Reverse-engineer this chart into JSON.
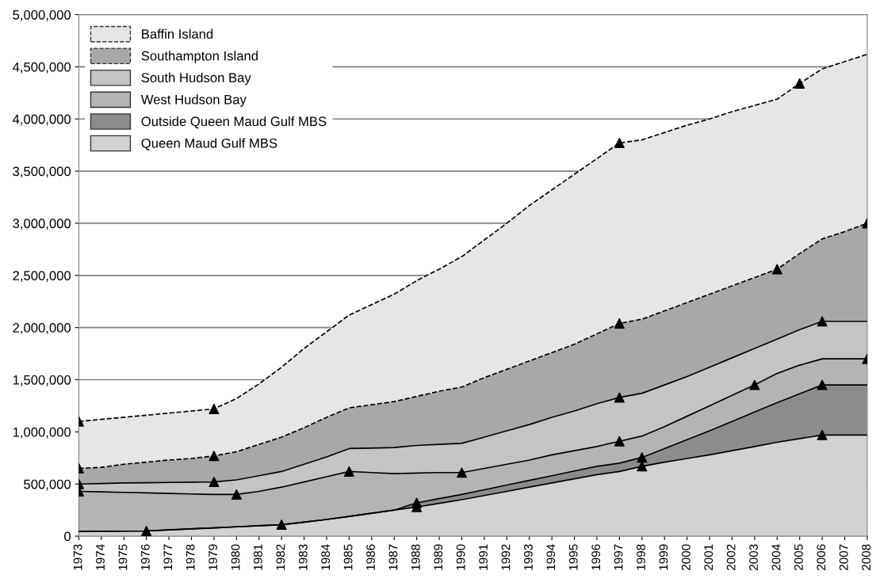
{
  "chart_data": {
    "type": "area",
    "stacked": true,
    "x": [
      1973,
      1974,
      1975,
      1976,
      1977,
      1978,
      1979,
      1980,
      1981,
      1982,
      1983,
      1984,
      1985,
      1986,
      1987,
      1988,
      1989,
      1990,
      1991,
      1992,
      1993,
      1994,
      1995,
      1996,
      1997,
      1998,
      1999,
      2000,
      2001,
      2002,
      2003,
      2004,
      2005,
      2006,
      2007,
      2008
    ],
    "xlim": [
      1973,
      2008
    ],
    "xticks": [
      1973,
      1974,
      1975,
      1976,
      1977,
      1978,
      1979,
      1980,
      1981,
      1982,
      1983,
      1984,
      1985,
      1986,
      1987,
      1988,
      1989,
      1990,
      1991,
      1992,
      1993,
      1994,
      1995,
      1996,
      1997,
      1998,
      1999,
      2000,
      2001,
      2002,
      2003,
      2004,
      2005,
      2006,
      2007,
      2008
    ],
    "ylim": [
      0,
      5000000
    ],
    "yticks": [
      {
        "value": 0,
        "label": "0"
      },
      {
        "value": 500000,
        "label": "500,000"
      },
      {
        "value": 1000000,
        "label": "1,000,000"
      },
      {
        "value": 1500000,
        "label": "1,500,000"
      },
      {
        "value": 2000000,
        "label": "2,000,000"
      },
      {
        "value": 2500000,
        "label": "2,500,000"
      },
      {
        "value": 3000000,
        "label": "3,000,000"
      },
      {
        "value": 3500000,
        "label": "3,500,000"
      },
      {
        "value": 4000000,
        "label": "4,000,000"
      },
      {
        "value": 4500000,
        "label": "4,500,000"
      },
      {
        "value": 5000000,
        "label": "5,000,000"
      }
    ],
    "grid": "y",
    "legend": "top left",
    "series": [
      {
        "name": "Queen Maud Gulf MBS",
        "color": "#d2d2d2",
        "values": [
          45000,
          47000,
          48000,
          50000,
          60000,
          70000,
          80000,
          90000,
          100000,
          110000,
          135000,
          160000,
          190000,
          220000,
          250000,
          280000,
          315000,
          350000,
          390000,
          430000,
          470000,
          510000,
          550000,
          590000,
          620000,
          670000,
          710000,
          745000,
          780000,
          820000,
          860000,
          900000,
          935000,
          970000,
          970000,
          970000
        ]
      },
      {
        "name": "Outside Queen Maud Gulf MBS",
        "color": "#8c8c8c",
        "values": [
          0,
          0,
          0,
          0,
          0,
          0,
          0,
          0,
          0,
          0,
          0,
          0,
          0,
          0,
          0,
          40000,
          45000,
          50000,
          55000,
          60000,
          65000,
          70000,
          75000,
          80000,
          80000,
          85000,
          130000,
          180000,
          230000,
          280000,
          330000,
          380000,
          430000,
          480000,
          480000,
          480000
        ]
      },
      {
        "name": "West Hudson Bay",
        "color": "#b4b4b4",
        "values": [
          385000,
          378000,
          372000,
          365000,
          350000,
          335000,
          320000,
          310000,
          330000,
          360000,
          385000,
          410000,
          430000,
          390000,
          350000,
          285000,
          250000,
          210000,
          205000,
          200000,
          195000,
          200000,
          195000,
          190000,
          210000,
          205000,
          210000,
          225000,
          240000,
          250000,
          260000,
          280000,
          275000,
          250000,
          250000,
          250000
        ]
      },
      {
        "name": "South Hudson Bay",
        "color": "#c4c4c4",
        "values": [
          70000,
          80000,
          90000,
          97000,
          105000,
          113000,
          120000,
          140000,
          150000,
          150000,
          170000,
          190000,
          220000,
          235000,
          250000,
          265000,
          270000,
          280000,
          300000,
          320000,
          340000,
          360000,
          380000,
          410000,
          420000,
          410000,
          400000,
          380000,
          370000,
          360000,
          350000,
          330000,
          340000,
          360000,
          360000,
          360000
        ]
      },
      {
        "name": "Southampton Island",
        "color": "#a8a8a8",
        "line_style": "dashed",
        "values": [
          150000,
          155000,
          180000,
          198000,
          215000,
          227000,
          250000,
          270000,
          300000,
          330000,
          350000,
          380000,
          390000,
          415000,
          440000,
          470000,
          510000,
          540000,
          570000,
          590000,
          610000,
          620000,
          640000,
          670000,
          710000,
          710000,
          710000,
          710000,
          700000,
          690000,
          680000,
          670000,
          730000,
          790000,
          860000,
          940000
        ]
      },
      {
        "name": "Baffin Island",
        "color": "#e6e6e6",
        "line_style": "dashed",
        "values": [
          450000,
          460000,
          450000,
          450000,
          450000,
          455000,
          450000,
          510000,
          580000,
          670000,
          760000,
          820000,
          890000,
          960000,
          1030000,
          1110000,
          1170000,
          1250000,
          1320000,
          1400000,
          1490000,
          1560000,
          1630000,
          1680000,
          1730000,
          1720000,
          1710000,
          1700000,
          1680000,
          1670000,
          1650000,
          1630000,
          1630000,
          1630000,
          1630000,
          1620000
        ]
      },
      {
        "type": "scatter",
        "marker": "triangle",
        "color": "#000000",
        "x": [
          1973,
          1973,
          1973,
          1973,
          1976,
          1979,
          1979,
          1979,
          1980,
          1982,
          1985,
          1988,
          1988,
          1990,
          1997,
          1997,
          1997,
          1997,
          1998,
          1998,
          2003,
          2004,
          2005,
          2006,
          2006,
          2006,
          2008,
          2008
        ],
        "values": [
          1100000,
          650000,
          500000,
          430000,
          50000,
          1220000,
          770000,
          520000,
          400000,
          110000,
          620000,
          280000,
          320000,
          610000,
          3770000,
          2040000,
          1330000,
          910000,
          670000,
          755000,
          1450000,
          2560000,
          4340000,
          2060000,
          1450000,
          970000,
          3000000,
          1700000
        ]
      }
    ]
  }
}
